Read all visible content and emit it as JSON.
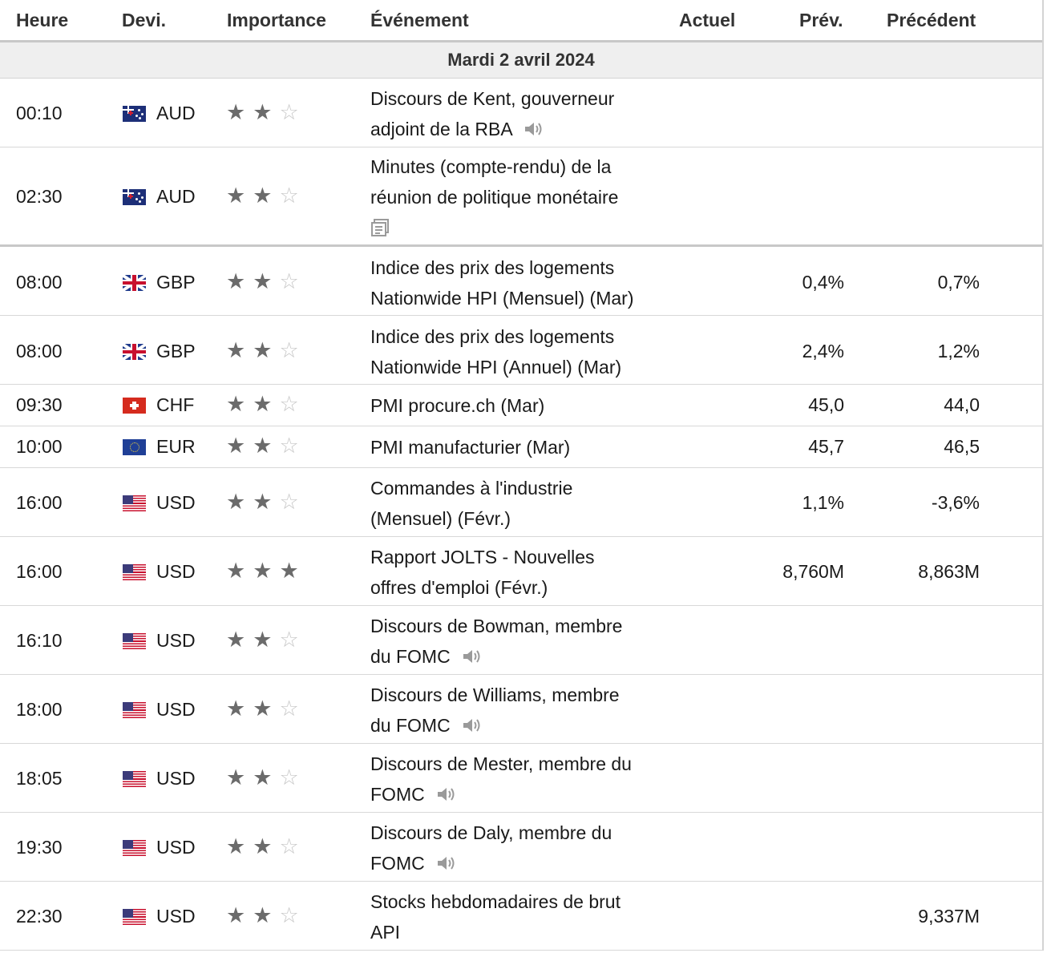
{
  "headers": {
    "time": "Heure",
    "currency": "Devi.",
    "importance": "Importance",
    "event": "Événement",
    "actual": "Actuel",
    "forecast": "Prév.",
    "previous": "Précédent"
  },
  "date_label": "Mardi 2 avril 2024",
  "colors": {
    "star_on": "#6b6b6b",
    "star_off": "#c6c6c6",
    "date_row_bg": "#efefef",
    "border": "#d4d4d4"
  },
  "rows": [
    {
      "time": "00:10",
      "currency": "AUD",
      "flag": "flag-aud",
      "importance": 2,
      "event": "Discours de Kent, gouverneur adjoint de la RBA",
      "icon": "speaker-icon",
      "actual": "",
      "forecast": "",
      "previous": ""
    },
    {
      "time": "02:30",
      "currency": "AUD",
      "flag": "flag-aud",
      "importance": 2,
      "event": "Minutes (compte-rendu) de la réunion de politique monétaire",
      "icon": "document-icon",
      "actual": "",
      "forecast": "",
      "previous": ""
    },
    {
      "time": "08:00",
      "currency": "GBP",
      "flag": "flag-gbp",
      "importance": 2,
      "event": "Indice des prix des logements Nationwide HPI (Mensuel) (Mar)",
      "icon": "",
      "actual": "",
      "forecast": "0,4%",
      "previous": "0,7%"
    },
    {
      "time": "08:00",
      "currency": "GBP",
      "flag": "flag-gbp",
      "importance": 2,
      "event": "Indice des prix des logements Nationwide HPI (Annuel) (Mar)",
      "icon": "",
      "actual": "",
      "forecast": "2,4%",
      "previous": "1,2%"
    },
    {
      "time": "09:30",
      "currency": "CHF",
      "flag": "flag-chf",
      "importance": 2,
      "event": "PMI procure.ch (Mar)",
      "icon": "",
      "actual": "",
      "forecast": "45,0",
      "previous": "44,0"
    },
    {
      "time": "10:00",
      "currency": "EUR",
      "flag": "flag-eur",
      "importance": 2,
      "event": "PMI manufacturier (Mar)",
      "icon": "",
      "actual": "",
      "forecast": "45,7",
      "previous": "46,5"
    },
    {
      "time": "16:00",
      "currency": "USD",
      "flag": "flag-usd",
      "importance": 2,
      "event": "Commandes à l'industrie (Mensuel) (Févr.)",
      "icon": "",
      "actual": "",
      "forecast": "1,1%",
      "previous": "-3,6%"
    },
    {
      "time": "16:00",
      "currency": "USD",
      "flag": "flag-usd",
      "importance": 3,
      "event": "Rapport JOLTS - Nouvelles offres d'emploi (Févr.)",
      "icon": "",
      "actual": "",
      "forecast": "8,760M",
      "previous": "8,863M"
    },
    {
      "time": "16:10",
      "currency": "USD",
      "flag": "flag-usd",
      "importance": 2,
      "event": "Discours de Bowman, membre du FOMC",
      "icon": "speaker-icon",
      "actual": "",
      "forecast": "",
      "previous": ""
    },
    {
      "time": "18:00",
      "currency": "USD",
      "flag": "flag-usd",
      "importance": 2,
      "event": "Discours de Williams, membre du FOMC",
      "icon": "speaker-icon",
      "actual": "",
      "forecast": "",
      "previous": ""
    },
    {
      "time": "18:05",
      "currency": "USD",
      "flag": "flag-usd",
      "importance": 2,
      "event": "Discours de Mester, membre du FOMC",
      "icon": "speaker-icon",
      "actual": "",
      "forecast": "",
      "previous": ""
    },
    {
      "time": "19:30",
      "currency": "USD",
      "flag": "flag-usd",
      "importance": 2,
      "event": "Discours de Daly, membre du FOMC",
      "icon": "speaker-icon",
      "actual": "",
      "forecast": "",
      "previous": ""
    },
    {
      "time": "22:30",
      "currency": "USD",
      "flag": "flag-usd",
      "importance": 2,
      "event": "Stocks hebdomadaires de brut API",
      "icon": "",
      "actual": "",
      "forecast": "",
      "previous": "9,337M"
    }
  ]
}
